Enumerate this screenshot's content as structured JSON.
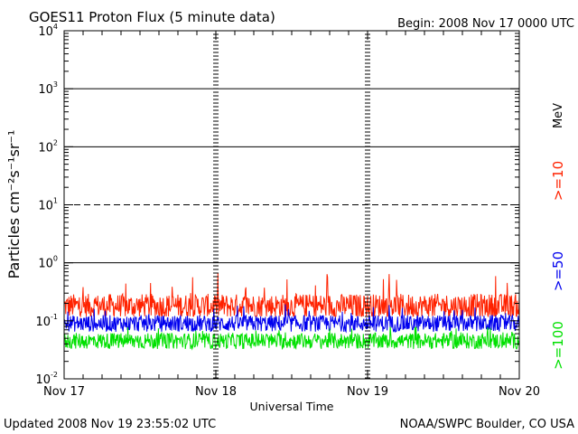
{
  "chart_data": {
    "type": "line",
    "title": "GOES11 Proton Flux (5 minute data)",
    "begin_text": "Begin: 2008 Nov 17 0000 UTC",
    "xlabel": "Universal Time",
    "ylabel": "Particles cm⁻²s⁻¹sr⁻¹",
    "y_scale": "log",
    "ylim": [
      0.01,
      10000
    ],
    "x_range_days": [
      0,
      3
    ],
    "x_ticks": [
      {
        "day": 0,
        "label": "Nov 17"
      },
      {
        "day": 1,
        "label": "Nov 18"
      },
      {
        "day": 2,
        "label": "Nov 19"
      },
      {
        "day": 3,
        "label": "Nov 20"
      }
    ],
    "y_ticks": [
      {
        "value": 0.01,
        "base": "10",
        "exp": "-2"
      },
      {
        "value": 0.1,
        "base": "10",
        "exp": "-1"
      },
      {
        "value": 1,
        "base": "10",
        "exp": "0"
      },
      {
        "value": 10,
        "base": "10",
        "exp": "1"
      },
      {
        "value": 100,
        "base": "10",
        "exp": "2"
      },
      {
        "value": 1000,
        "base": "10",
        "exp": "3"
      },
      {
        "value": 10000,
        "base": "10",
        "exp": "4"
      }
    ],
    "threshold_lines": [
      {
        "value": 1,
        "style": "solid"
      },
      {
        "value": 10,
        "style": "dashed"
      },
      {
        "value": 100,
        "style": "solid"
      },
      {
        "value": 1000,
        "style": "solid"
      }
    ],
    "legend_unit": "MeV",
    "series": [
      {
        "name": ">=10",
        "color": "#ff2200",
        "typical_value": 0.18,
        "range": [
          0.12,
          0.7
        ]
      },
      {
        "name": ">=50",
        "color": "#0000ee",
        "typical_value": 0.09,
        "range": [
          0.06,
          0.2
        ]
      },
      {
        "name": ">=100",
        "color": "#00e000",
        "typical_value": 0.045,
        "range": [
          0.025,
          0.08
        ]
      }
    ]
  },
  "footer": {
    "updated": "Updated 2008 Nov 19 23:55:02 UTC",
    "source": "NOAA/SWPC Boulder, CO USA"
  }
}
